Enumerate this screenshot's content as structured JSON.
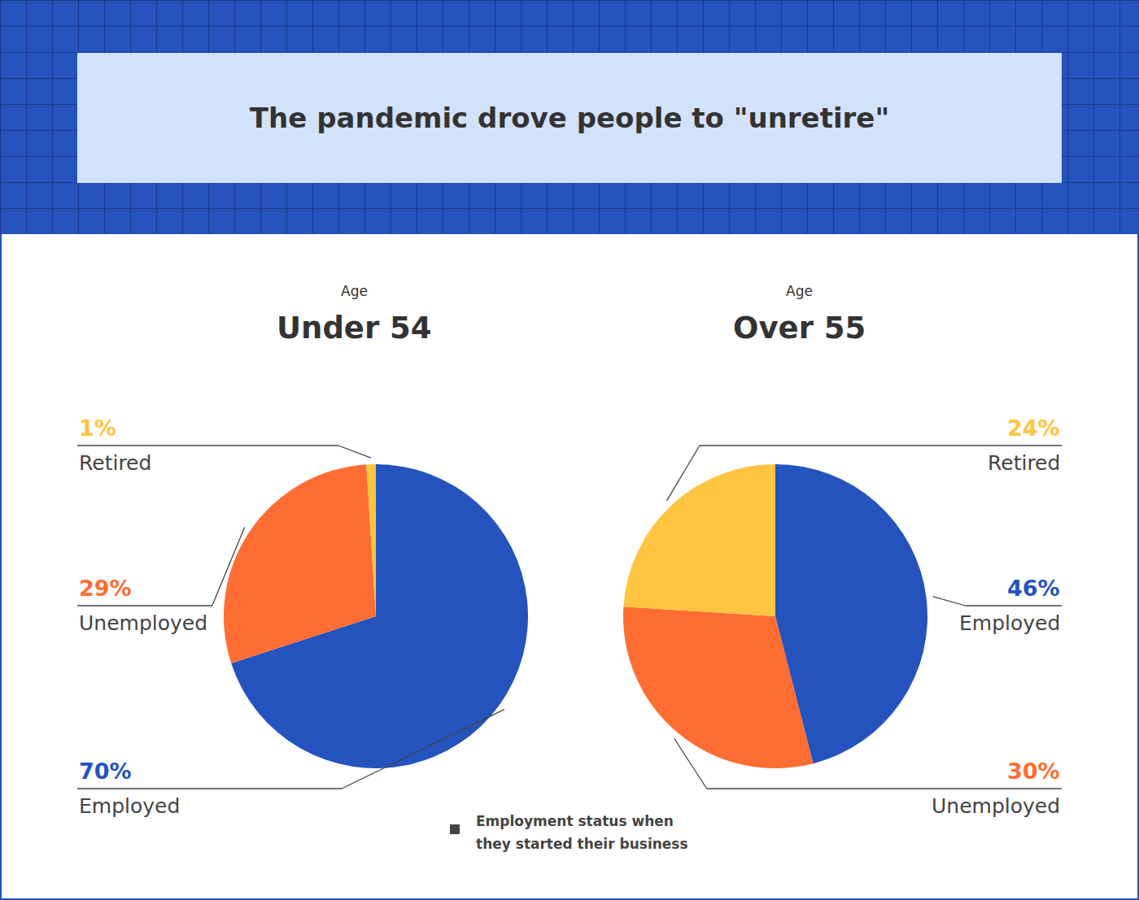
{
  "title": "The pandemic drove people to \"unretire\"",
  "annotations": [
    "Employment status when they started their business"
  ],
  "chart_data": [
    {
      "type": "pie",
      "subtitle": "Age",
      "title": "Under 54",
      "categories": [
        "Employed",
        "Unemployed",
        "Retired"
      ],
      "values": [
        70,
        29,
        1
      ],
      "value_labels": [
        "70%",
        "29%",
        "1%"
      ],
      "colors": [
        "#2453bd",
        "#ff6d33",
        "#ffc440"
      ],
      "data_labels": true
    },
    {
      "type": "pie",
      "subtitle": "Age",
      "title": "Over 55",
      "categories": [
        "Employed",
        "Unemployed",
        "Retired"
      ],
      "values": [
        46,
        30,
        24
      ],
      "value_labels": [
        "46%",
        "30%",
        "24%"
      ],
      "colors": [
        "#2453bd",
        "#ff6d33",
        "#ffc440"
      ],
      "data_labels": true
    }
  ]
}
